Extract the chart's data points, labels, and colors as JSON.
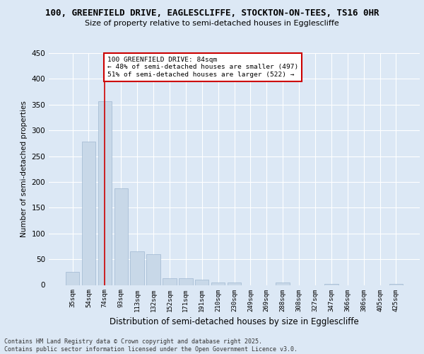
{
  "title_line1": "100, GREENFIELD DRIVE, EAGLESCLIFFE, STOCKTON-ON-TEES, TS16 0HR",
  "title_line2": "Size of property relative to semi-detached houses in Egglescliffe",
  "xlabel": "Distribution of semi-detached houses by size in Egglescliffe",
  "ylabel": "Number of semi-detached properties",
  "categories": [
    "35sqm",
    "54sqm",
    "74sqm",
    "93sqm",
    "113sqm",
    "132sqm",
    "152sqm",
    "171sqm",
    "191sqm",
    "210sqm",
    "230sqm",
    "249sqm",
    "269sqm",
    "288sqm",
    "308sqm",
    "327sqm",
    "347sqm",
    "366sqm",
    "386sqm",
    "405sqm",
    "425sqm"
  ],
  "values": [
    25,
    278,
    357,
    188,
    65,
    60,
    13,
    13,
    10,
    5,
    5,
    0,
    0,
    5,
    0,
    0,
    2,
    0,
    0,
    0,
    2
  ],
  "bar_color": "#c8d8e8",
  "bar_edgecolor": "#a0b8d0",
  "vline_x": 2,
  "vline_color": "#cc0000",
  "annotation_text": "100 GREENFIELD DRIVE: 84sqm\n← 48% of semi-detached houses are smaller (497)\n51% of semi-detached houses are larger (522) →",
  "annotation_box_color": "#ffffff",
  "annotation_box_edgecolor": "#cc0000",
  "footer_text": "Contains HM Land Registry data © Crown copyright and database right 2025.\nContains public sector information licensed under the Open Government Licence v3.0.",
  "background_color": "#dce8f5",
  "plot_background_color": "#dce8f5",
  "grid_color": "#ffffff",
  "ylim": [
    0,
    450
  ],
  "yticks": [
    0,
    50,
    100,
    150,
    200,
    250,
    300,
    350,
    400,
    450
  ]
}
